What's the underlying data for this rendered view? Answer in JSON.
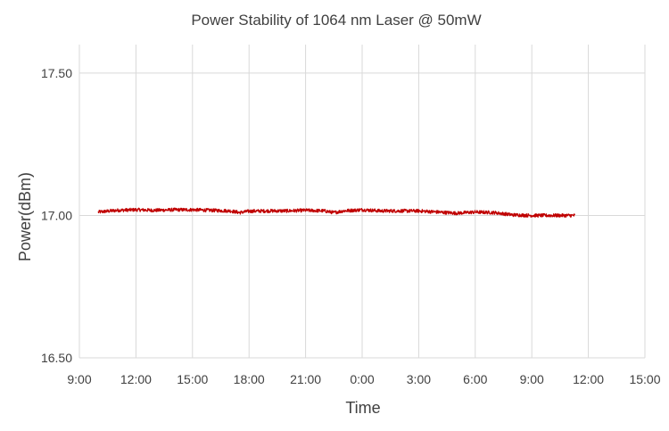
{
  "chart_data": {
    "type": "line",
    "title": "Power Stability of 1064 nm Laser @ 50mW",
    "xlabel": "Time",
    "ylabel": "Power(dBm)",
    "x_ticks": [
      "9:00",
      "12:00",
      "15:00",
      "18:00",
      "21:00",
      "0:00",
      "3:00",
      "6:00",
      "9:00",
      "12:00",
      "15:00"
    ],
    "x_range_hours": [
      0,
      30
    ],
    "y_ticks": [
      "16.50",
      "17.00",
      "17.50"
    ],
    "ylim": [
      16.5,
      17.6
    ],
    "grid": true,
    "legend": "none",
    "series": [
      {
        "color": "#c00000",
        "noise_amplitude": 0.006,
        "x": [
          1,
          2,
          3,
          4,
          5,
          6,
          7,
          8,
          8.5,
          9,
          10,
          11,
          12,
          13,
          13.5,
          14,
          15,
          16,
          17,
          18,
          19,
          20,
          21,
          22,
          23,
          24,
          25,
          26,
          26.3
        ],
        "y": [
          17.012,
          17.018,
          17.02,
          17.018,
          17.02,
          17.02,
          17.018,
          17.016,
          17.01,
          17.015,
          17.016,
          17.016,
          17.018,
          17.016,
          17.01,
          17.016,
          17.02,
          17.016,
          17.016,
          17.016,
          17.012,
          17.008,
          17.012,
          17.01,
          17.002,
          17.0,
          17.0,
          17.0,
          17.0
        ]
      }
    ]
  }
}
